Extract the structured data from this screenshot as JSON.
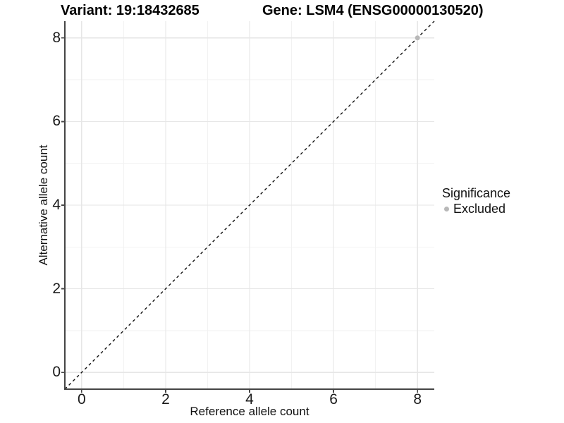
{
  "chart_data": {
    "type": "scatter",
    "title_left": "Variant: 19:18432685",
    "title_right": "Gene: LSM4 (ENSG00000130520)",
    "xlabel": "Reference allele count",
    "ylabel": "Alternative allele count",
    "xlim": [
      -0.4,
      8.4
    ],
    "ylim": [
      -0.4,
      8.4
    ],
    "x_ticks_major": [
      0,
      2,
      4,
      6,
      8
    ],
    "x_ticks_minor": [
      1,
      3,
      5,
      7
    ],
    "y_ticks_major": [
      0,
      2,
      4,
      6,
      8
    ],
    "y_ticks_minor": [
      1,
      3,
      5,
      7
    ],
    "grid": "major+minor",
    "series": [
      {
        "name": "Excluded",
        "color": "#b8b8b8",
        "marker": "circle",
        "points": [
          {
            "x": 8,
            "y": 8
          }
        ]
      }
    ],
    "reference_line": {
      "kind": "identity y=x",
      "style": "dashed",
      "from": [
        -0.4,
        -0.4
      ],
      "to": [
        8.4,
        8.4
      ]
    },
    "legend": {
      "title": "Significance",
      "position": "right",
      "items": [
        {
          "label": "Excluded",
          "color": "#b8b8b8"
        }
      ]
    }
  },
  "colors": {
    "background": "#ffffff",
    "grid_major": "#e6e6e6",
    "grid_minor": "#f2f2f2",
    "axis_line": "#454545",
    "tick_mark": "#454545",
    "tick_text": "#1a1a1a",
    "reference_line": "#111111",
    "point": "#b8b8b8"
  }
}
